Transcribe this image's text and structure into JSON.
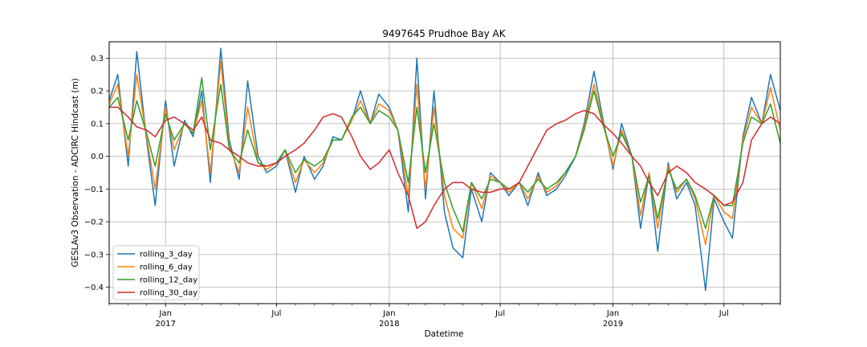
{
  "chart_data": {
    "type": "line",
    "title": "9497645 Prudhoe Bay AK",
    "xlabel": "Datetime",
    "ylabel": "GESLAv3 Observation - ADCIRC Hindcast (m)",
    "xlim": [
      "2016-10-01",
      "2019-10-01"
    ],
    "ylim": [
      -0.45,
      0.35
    ],
    "yticks": [
      0.3,
      0.2,
      0.1,
      0.0,
      -0.1,
      -0.2,
      -0.3,
      -0.4
    ],
    "ytick_labels": [
      "0.3",
      "0.2",
      "0.1",
      "0.0",
      "−0.1",
      "−0.2",
      "−0.3",
      "−0.4"
    ],
    "xticks_major": [
      {
        "date": "2017-01-01",
        "label": "Jan",
        "year": "2017"
      },
      {
        "date": "2017-07-01",
        "label": "Jul",
        "year": ""
      },
      {
        "date": "2018-01-01",
        "label": "Jan",
        "year": "2018"
      },
      {
        "date": "2018-07-01",
        "label": "Jul",
        "year": ""
      },
      {
        "date": "2019-01-01",
        "label": "Jan",
        "year": "2019"
      },
      {
        "date": "2019-07-01",
        "label": "Jul",
        "year": ""
      }
    ],
    "grid": true,
    "legend_position": "bottom-left",
    "colors": {
      "rolling_3_day": "#1f77b4",
      "rolling_6_day": "#ff7f0e",
      "rolling_12_day": "#2ca02c",
      "rolling_30_day": "#d62728"
    },
    "x": [
      "2016-10-01",
      "2016-10-15",
      "2016-11-01",
      "2016-11-15",
      "2016-12-01",
      "2016-12-15",
      "2017-01-01",
      "2017-01-15",
      "2017-02-01",
      "2017-02-15",
      "2017-03-01",
      "2017-03-15",
      "2017-04-01",
      "2017-04-15",
      "2017-05-01",
      "2017-05-15",
      "2017-06-01",
      "2017-06-15",
      "2017-07-01",
      "2017-07-15",
      "2017-08-01",
      "2017-08-15",
      "2017-09-01",
      "2017-09-15",
      "2017-10-01",
      "2017-10-15",
      "2017-11-01",
      "2017-11-15",
      "2017-12-01",
      "2017-12-15",
      "2018-01-01",
      "2018-01-15",
      "2018-02-01",
      "2018-02-15",
      "2018-03-01",
      "2018-03-15",
      "2018-04-01",
      "2018-04-15",
      "2018-05-01",
      "2018-05-15",
      "2018-06-01",
      "2018-06-15",
      "2018-07-01",
      "2018-07-15",
      "2018-08-01",
      "2018-08-15",
      "2018-09-01",
      "2018-09-15",
      "2018-10-01",
      "2018-10-15",
      "2018-11-01",
      "2018-11-15",
      "2018-12-01",
      "2018-12-15",
      "2019-01-01",
      "2019-01-15",
      "2019-02-01",
      "2019-02-15",
      "2019-03-01",
      "2019-03-15",
      "2019-04-01",
      "2019-04-15",
      "2019-05-01",
      "2019-05-15",
      "2019-06-01",
      "2019-06-15",
      "2019-07-01",
      "2019-07-15",
      "2019-08-01",
      "2019-08-15",
      "2019-09-01",
      "2019-09-15",
      "2019-10-01"
    ],
    "series": [
      {
        "name": "rolling_3_day",
        "values": [
          0.17,
          0.25,
          -0.03,
          0.32,
          0.05,
          -0.15,
          0.17,
          -0.03,
          0.11,
          0.06,
          0.2,
          -0.08,
          0.33,
          0.05,
          -0.07,
          0.23,
          0.0,
          -0.05,
          -0.03,
          0.02,
          -0.11,
          0.0,
          -0.07,
          -0.03,
          0.06,
          0.05,
          0.11,
          0.2,
          0.1,
          0.19,
          0.15,
          0.08,
          -0.17,
          0.3,
          -0.13,
          0.2,
          -0.17,
          -0.28,
          -0.31,
          -0.1,
          -0.2,
          -0.05,
          -0.08,
          -0.12,
          -0.08,
          -0.15,
          -0.05,
          -0.12,
          -0.1,
          -0.06,
          0.0,
          0.1,
          0.26,
          0.12,
          -0.04,
          0.1,
          0.0,
          -0.22,
          -0.05,
          -0.29,
          -0.02,
          -0.13,
          -0.08,
          -0.15,
          -0.41,
          -0.13,
          -0.2,
          -0.25,
          0.06,
          0.18,
          0.1,
          0.25,
          0.14
        ]
      },
      {
        "name": "rolling_6_day",
        "values": [
          0.16,
          0.22,
          0.0,
          0.25,
          0.06,
          -0.1,
          0.15,
          0.02,
          0.1,
          0.07,
          0.17,
          -0.05,
          0.29,
          0.03,
          -0.05,
          0.15,
          -0.02,
          -0.04,
          -0.02,
          0.02,
          -0.08,
          -0.01,
          -0.05,
          -0.02,
          0.05,
          0.05,
          0.11,
          0.17,
          0.1,
          0.16,
          0.14,
          0.08,
          -0.12,
          0.22,
          -0.1,
          0.15,
          -0.12,
          -0.22,
          -0.25,
          -0.08,
          -0.16,
          -0.06,
          -0.08,
          -0.11,
          -0.08,
          -0.13,
          -0.06,
          -0.11,
          -0.09,
          -0.05,
          0.0,
          0.09,
          0.22,
          0.11,
          -0.03,
          0.08,
          0.0,
          -0.18,
          -0.05,
          -0.22,
          -0.03,
          -0.11,
          -0.07,
          -0.13,
          -0.27,
          -0.12,
          -0.17,
          -0.19,
          0.05,
          0.15,
          0.1,
          0.21,
          0.08
        ]
      },
      {
        "name": "rolling_12_day",
        "values": [
          0.15,
          0.18,
          0.05,
          0.17,
          0.07,
          -0.03,
          0.13,
          0.05,
          0.1,
          0.07,
          0.24,
          0.02,
          0.22,
          0.02,
          -0.02,
          0.08,
          -0.02,
          -0.03,
          -0.02,
          0.02,
          -0.05,
          -0.01,
          -0.03,
          -0.01,
          0.05,
          0.05,
          0.12,
          0.15,
          0.1,
          0.14,
          0.12,
          0.08,
          -0.08,
          0.15,
          -0.05,
          0.1,
          -0.08,
          -0.16,
          -0.23,
          -0.08,
          -0.13,
          -0.07,
          -0.08,
          -0.1,
          -0.08,
          -0.11,
          -0.07,
          -0.1,
          -0.08,
          -0.05,
          0.0,
          0.08,
          0.2,
          0.1,
          0.0,
          0.07,
          0.0,
          -0.14,
          -0.06,
          -0.19,
          -0.04,
          -0.1,
          -0.07,
          -0.12,
          -0.22,
          -0.12,
          -0.15,
          -0.15,
          0.04,
          0.12,
          0.1,
          0.16,
          0.04
        ]
      },
      {
        "name": "rolling_30_day",
        "values": [
          0.15,
          0.15,
          0.12,
          0.09,
          0.08,
          0.06,
          0.11,
          0.12,
          0.1,
          0.08,
          0.12,
          0.05,
          0.04,
          0.02,
          0.0,
          -0.02,
          -0.03,
          -0.03,
          -0.02,
          0.0,
          0.02,
          0.04,
          0.08,
          0.12,
          0.13,
          0.12,
          0.06,
          0.0,
          -0.04,
          -0.02,
          0.02,
          -0.05,
          -0.12,
          -0.22,
          -0.2,
          -0.15,
          -0.1,
          -0.08,
          -0.08,
          -0.1,
          -0.11,
          -0.11,
          -0.1,
          -0.1,
          -0.08,
          -0.03,
          0.03,
          0.08,
          0.1,
          0.11,
          0.13,
          0.14,
          0.13,
          0.1,
          0.07,
          0.04,
          0.0,
          -0.03,
          -0.08,
          -0.12,
          -0.05,
          -0.03,
          -0.05,
          -0.08,
          -0.1,
          -0.12,
          -0.15,
          -0.14,
          -0.08,
          0.05,
          0.1,
          0.12,
          0.1
        ]
      }
    ]
  }
}
